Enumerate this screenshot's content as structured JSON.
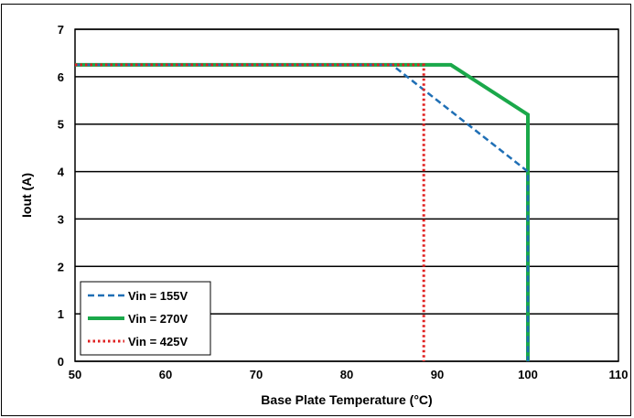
{
  "chart_data": {
    "type": "line",
    "title": "",
    "xlabel": "Base Plate Temperature (°C)",
    "ylabel": "Iout (A)",
    "xlim": [
      50,
      110
    ],
    "ylim": [
      0,
      7
    ],
    "x_ticks": [
      "50",
      "60",
      "70",
      "80",
      "90",
      "100",
      "110"
    ],
    "y_ticks": [
      "0",
      "1",
      "2",
      "3",
      "4",
      "5",
      "6",
      "7"
    ],
    "grid": "horizontal",
    "legend_position": "bottom-left",
    "series": [
      {
        "name": "Vin = 155V",
        "color": "#1f6fb5",
        "style": "dashed",
        "points": [
          [
            50,
            6.25
          ],
          [
            85,
            6.25
          ],
          [
            100,
            4.0
          ],
          [
            100,
            0
          ]
        ]
      },
      {
        "name": "Vin = 270V",
        "color": "#1aa84a",
        "style": "solid",
        "points": [
          [
            50,
            6.25
          ],
          [
            91.5,
            6.25
          ],
          [
            100,
            5.2
          ],
          [
            100,
            0
          ]
        ]
      },
      {
        "name": "Vin = 425V",
        "color": "#e02020",
        "style": "dotted",
        "points": [
          [
            50,
            6.25
          ],
          [
            88.5,
            6.25
          ],
          [
            88.5,
            0
          ]
        ]
      }
    ]
  }
}
